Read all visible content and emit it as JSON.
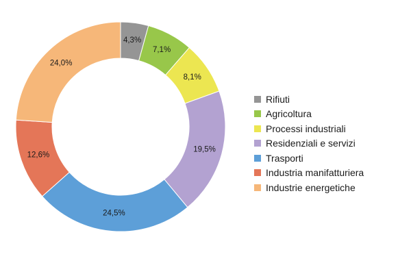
{
  "chart_data": {
    "type": "pie",
    "donut": true,
    "title": "",
    "legend_position": "right",
    "categories": [
      "Rifiuti",
      "Agricoltura",
      "Processi industriali",
      "Residenziali e servizi",
      "Trasporti",
      "Industria manifatturiera",
      "Industrie energetiche"
    ],
    "values": [
      4.3,
      7.1,
      8.1,
      19.5,
      24.5,
      12.6,
      24.0
    ],
    "value_labels": [
      "4,3%",
      "7,1%",
      "8,1%",
      "19,5%",
      "24,5%",
      "12,6%",
      "24,0%"
    ],
    "colors": [
      "#959595",
      "#98c74a",
      "#ece651",
      "#b3a2d1",
      "#5d9fd8",
      "#e47658",
      "#f6b779"
    ]
  }
}
